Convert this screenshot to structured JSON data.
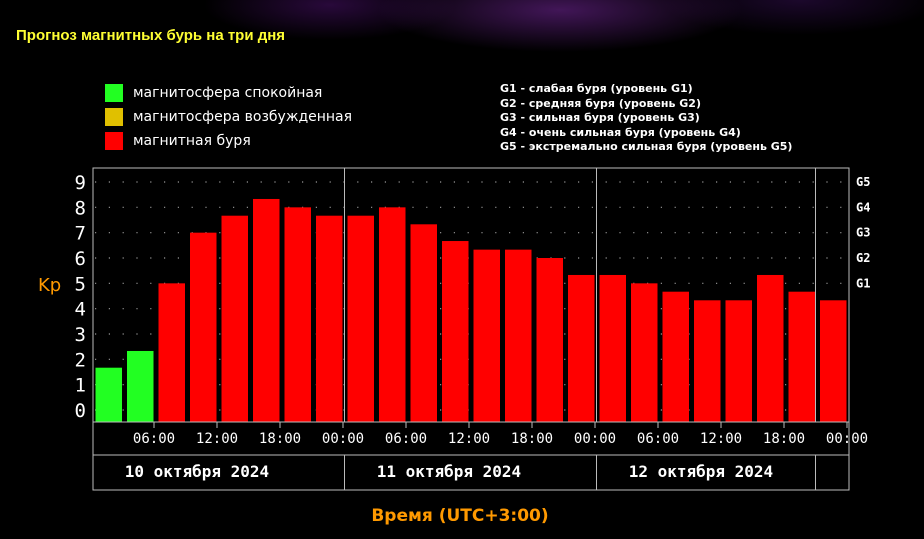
{
  "title": "Прогноз магнитных бурь на три дня",
  "legend": [
    {
      "label": "магнитосфера спокойная",
      "color": "#22ff22"
    },
    {
      "label": "магнитосфера возбужденная",
      "color": "#e0c000"
    },
    {
      "label": "магнитная буря",
      "color": "#ff0000"
    }
  ],
  "g_levels": [
    "G1 - слабая буря (уровень G1)",
    "G2 - средняя буря (уровень G2)",
    "G3 - сильная буря (уровень G3)",
    "G4 - очень сильная буря (уровень G4)",
    "G5 - экстремально сильная буря (уровень G5)"
  ],
  "chart_data": {
    "type": "bar",
    "ylabel": "Kp",
    "xlabel": "Время (UTC+3:00)",
    "ylim": [
      0,
      9
    ],
    "y_ticks": [
      "0",
      "1",
      "2",
      "3",
      "4",
      "5",
      "6",
      "7",
      "8",
      "9"
    ],
    "g_ticks": [
      {
        "label": "G1",
        "value": 5
      },
      {
        "label": "G2",
        "value": 6
      },
      {
        "label": "G3",
        "value": 7
      },
      {
        "label": "G4",
        "value": 8
      },
      {
        "label": "G5",
        "value": 9
      }
    ],
    "time_ticks": [
      "06:00",
      "12:00",
      "18:00",
      "00:00",
      "06:00",
      "12:00",
      "18:00",
      "00:00",
      "06:00",
      "12:00",
      "18:00",
      "00:00"
    ],
    "days": [
      "10 октября 2024",
      "11 октября 2024",
      "12 октября 2024"
    ],
    "values": [
      1.67,
      2.33,
      5.0,
      7.0,
      7.67,
      8.33,
      8.0,
      7.67,
      7.67,
      8.0,
      7.33,
      6.67,
      6.33,
      6.33,
      6.0,
      5.33,
      5.33,
      5.0,
      4.67,
      4.33,
      4.33,
      5.33,
      4.67,
      4.33
    ],
    "colors": [
      "#22ff22",
      "#22ff22",
      "#ff0000",
      "#ff0000",
      "#ff0000",
      "#ff0000",
      "#ff0000",
      "#ff0000",
      "#ff0000",
      "#ff0000",
      "#ff0000",
      "#ff0000",
      "#ff0000",
      "#ff0000",
      "#ff0000",
      "#ff0000",
      "#ff0000",
      "#ff0000",
      "#ff0000",
      "#ff0000",
      "#ff0000",
      "#ff0000",
      "#ff0000",
      "#ff0000"
    ],
    "grid": "dotted"
  }
}
